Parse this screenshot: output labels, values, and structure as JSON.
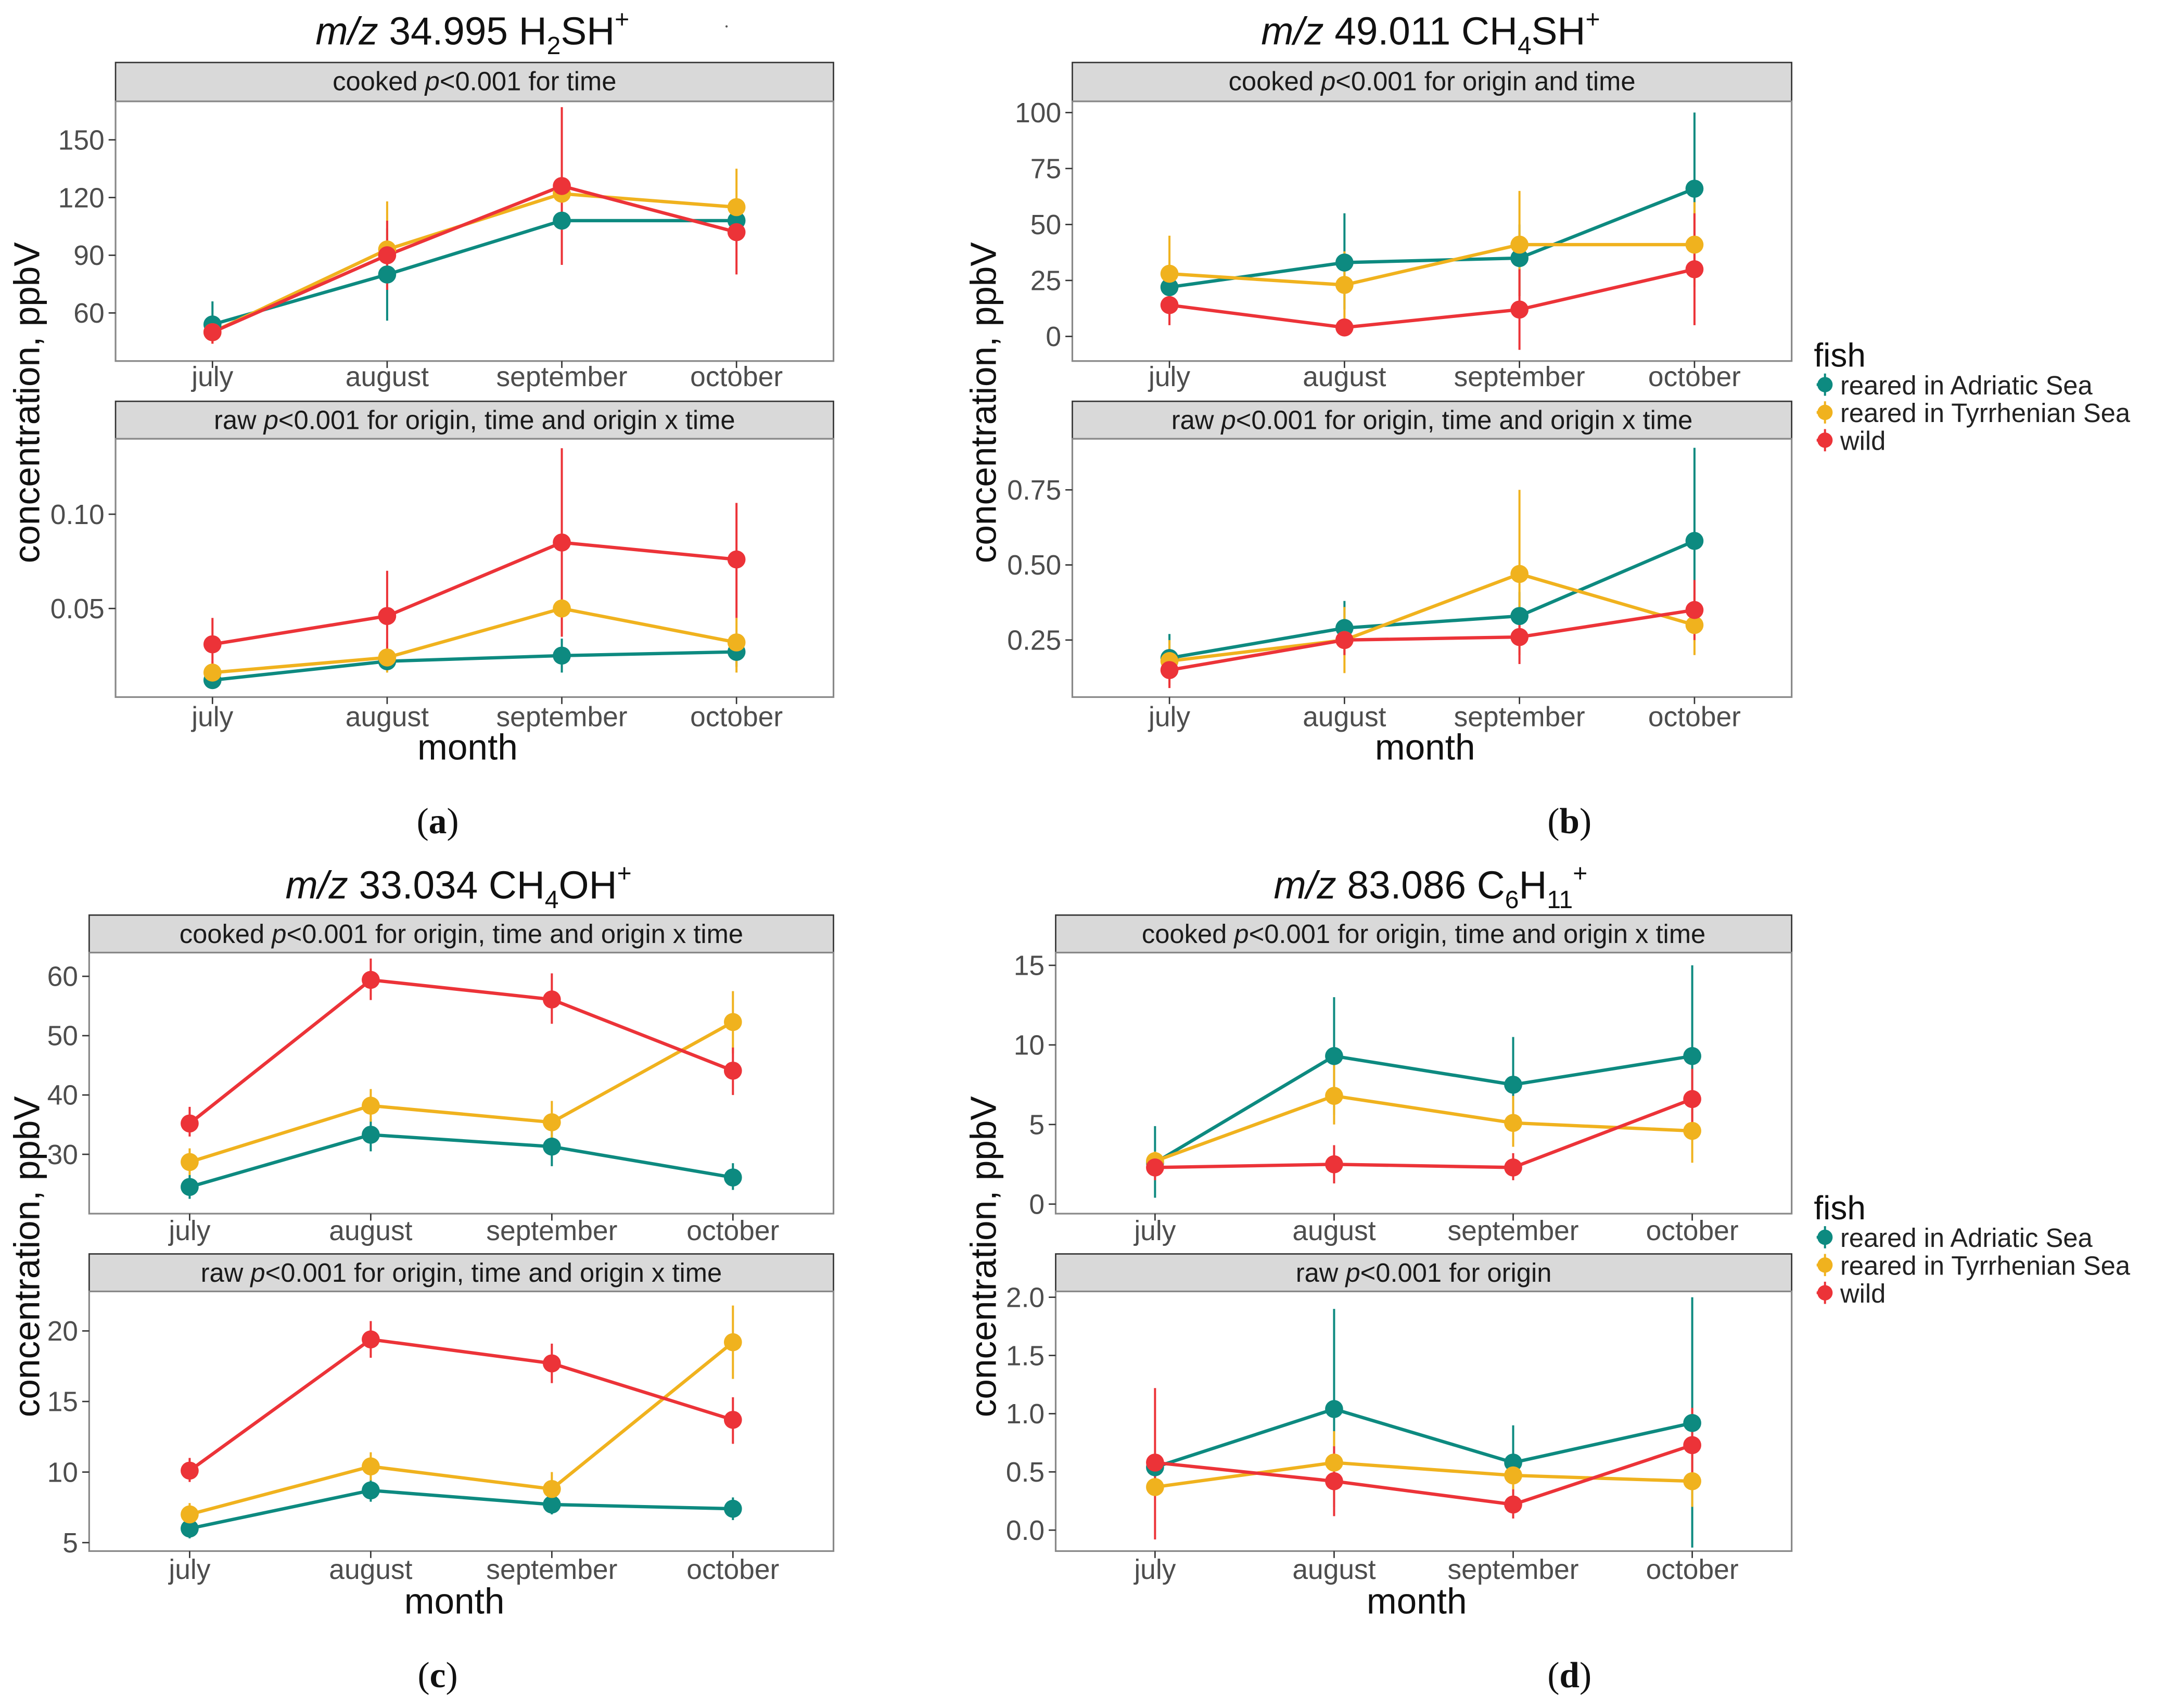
{
  "figure": {
    "xlabel": "month",
    "ylabel": "concentration, ppbV",
    "legend": {
      "title": "fish",
      "entries": [
        "reared in Adriatic Sea",
        "reared in Tyrrhenian Sea",
        "wild"
      ]
    },
    "colors": {
      "reared in Adriatic Sea": "#0d8a80",
      "reared in Tyrrhenian Sea": "#f0b21e",
      "wild": "#ec3338",
      "strip": "#d9d9d9"
    }
  },
  "chart_data": [
    {
      "type": "line",
      "label": "(a)",
      "title": "m/z 34.995 H2SH+",
      "categories": [
        "july",
        "august",
        "september",
        "october"
      ],
      "panels": [
        {
          "strip": "cooked p<0.001 for time",
          "ylim": [
            35,
            170
          ],
          "yticks": [
            60,
            90,
            120,
            150
          ],
          "ytick_labels": [
            "60",
            "90",
            "120",
            "150"
          ],
          "series": [
            {
              "name": "reared in Adriatic Sea",
              "values": [
                54,
                80,
                108,
                108
              ],
              "err_low": [
                46,
                56,
                108,
                108
              ],
              "err_high": [
                66,
                104,
                108,
                108
              ]
            },
            {
              "name": "reared in Tyrrhenian Sea",
              "values": [
                50,
                93,
                122,
                115
              ],
              "err_low": [
                44,
                76,
                108,
                98
              ],
              "err_high": [
                58,
                118,
                135,
                135
              ]
            },
            {
              "name": "wild",
              "values": [
                50,
                90,
                126,
                102
              ],
              "err_low": [
                44,
                72,
                85,
                80
              ],
              "err_high": [
                58,
                108,
                167,
                116
              ]
            }
          ]
        },
        {
          "strip": "raw p<0.001 for origin, time and origin x time",
          "ylim": [
            0.003,
            0.14
          ],
          "yticks": [
            0.05,
            0.1
          ],
          "ytick_labels": [
            "0.05",
            "0.10"
          ],
          "series": [
            {
              "name": "reared in Adriatic Sea",
              "values": [
                0.012,
                0.022,
                0.025,
                0.027
              ],
              "err_low": [
                0.008,
                0.018,
                0.016,
                0.019
              ],
              "err_high": [
                0.016,
                0.026,
                0.034,
                0.035
              ]
            },
            {
              "name": "reared in Tyrrhenian Sea",
              "values": [
                0.016,
                0.024,
                0.05,
                0.032
              ],
              "err_low": [
                0.01,
                0.016,
                0.035,
                0.016
              ],
              "err_high": [
                0.022,
                0.032,
                0.065,
                0.045
              ]
            },
            {
              "name": "wild",
              "values": [
                0.031,
                0.046,
                0.085,
                0.076
              ],
              "err_low": [
                0.018,
                0.022,
                0.035,
                0.045
              ],
              "err_high": [
                0.045,
                0.07,
                0.135,
                0.106
              ]
            }
          ]
        }
      ]
    },
    {
      "type": "line",
      "label": "(b)",
      "title": "m/z 49.011 CH4SH+",
      "categories": [
        "july",
        "august",
        "september",
        "october"
      ],
      "panels": [
        {
          "strip": "cooked p<0.001 for origin and time",
          "ylim": [
            -11,
            105
          ],
          "yticks": [
            0,
            25,
            50,
            75,
            100
          ],
          "ytick_labels": [
            "0",
            "25",
            "50",
            "75",
            "100"
          ],
          "series": [
            {
              "name": "reared in Adriatic Sea",
              "values": [
                22,
                33,
                35,
                66
              ],
              "err_low": [
                14,
                12,
                18,
                32
              ],
              "err_high": [
                30,
                55,
                50,
                100
              ]
            },
            {
              "name": "reared in Tyrrhenian Sea",
              "values": [
                28,
                23,
                41,
                41
              ],
              "err_low": [
                14,
                8,
                18,
                22
              ],
              "err_high": [
                45,
                38,
                65,
                60
              ]
            },
            {
              "name": "wild",
              "values": [
                14,
                4,
                12,
                30
              ],
              "err_low": [
                5,
                1,
                -6,
                5
              ],
              "err_high": [
                23,
                7,
                30,
                55
              ]
            }
          ]
        },
        {
          "strip": "raw p<0.001 for origin, time and origin x time",
          "ylim": [
            0.06,
            0.92
          ],
          "yticks": [
            0.25,
            0.5,
            0.75
          ],
          "ytick_labels": [
            "0.25",
            "0.50",
            "0.75"
          ],
          "series": [
            {
              "name": "reared in Adriatic Sea",
              "values": [
                0.19,
                0.29,
                0.33,
                0.58
              ],
              "err_low": [
                0.12,
                0.2,
                0.25,
                0.28
              ],
              "err_high": [
                0.27,
                0.38,
                0.41,
                0.89
              ]
            },
            {
              "name": "reared in Tyrrhenian Sea",
              "values": [
                0.18,
                0.25,
                0.47,
                0.3
              ],
              "err_low": [
                0.1,
                0.14,
                0.2,
                0.2
              ],
              "err_high": [
                0.25,
                0.36,
                0.75,
                0.4
              ]
            },
            {
              "name": "wild",
              "values": [
                0.15,
                0.25,
                0.26,
                0.35
              ],
              "err_low": [
                0.09,
                0.2,
                0.17,
                0.25
              ],
              "err_high": [
                0.22,
                0.3,
                0.35,
                0.45
              ]
            }
          ]
        }
      ]
    },
    {
      "type": "line",
      "label": "(c)",
      "title": "m/z 33.034 CH4OH+",
      "categories": [
        "july",
        "august",
        "september",
        "october"
      ],
      "panels": [
        {
          "strip": "cooked p<0.001 for origin, time and origin x time",
          "ylim": [
            20,
            64
          ],
          "yticks": [
            30,
            40,
            50,
            60
          ],
          "ytick_labels": [
            "30",
            "40",
            "50",
            "60"
          ],
          "series": [
            {
              "name": "reared in Adriatic Sea",
              "values": [
                24.5,
                33.3,
                31.3,
                26.1
              ],
              "err_low": [
                22.5,
                30.5,
                28,
                24
              ],
              "err_high": [
                26.5,
                36,
                34.5,
                28.5
              ]
            },
            {
              "name": "reared in Tyrrhenian Sea",
              "values": [
                28.7,
                38.2,
                35.4,
                52.3
              ],
              "err_low": [
                26.5,
                35.5,
                32,
                47
              ],
              "err_high": [
                31,
                41,
                39,
                57.5
              ]
            },
            {
              "name": "wild",
              "values": [
                35.2,
                59.4,
                56.1,
                44.1
              ],
              "err_low": [
                33,
                56,
                52,
                40
              ],
              "err_high": [
                38,
                63,
                60.5,
                48
              ]
            }
          ]
        },
        {
          "strip": "raw p<0.001 for origin, time and origin x time",
          "ylim": [
            4.4,
            22.8
          ],
          "yticks": [
            5,
            10,
            15,
            20
          ],
          "ytick_labels": [
            "5",
            "10",
            "15",
            "20"
          ],
          "series": [
            {
              "name": "reared in Adriatic Sea",
              "values": [
                6.0,
                8.7,
                7.7,
                7.4
              ],
              "err_low": [
                5.3,
                7.9,
                7.0,
                6.6
              ],
              "err_high": [
                6.7,
                9.5,
                8.4,
                8.2
              ]
            },
            {
              "name": "reared in Tyrrhenian Sea",
              "values": [
                7.0,
                10.4,
                8.8,
                19.2
              ],
              "err_low": [
                6.2,
                9.4,
                7.8,
                16.6
              ],
              "err_high": [
                7.8,
                11.4,
                10.0,
                21.8
              ]
            },
            {
              "name": "wild",
              "values": [
                10.1,
                19.4,
                17.7,
                13.7
              ],
              "err_low": [
                9.3,
                18.1,
                16.3,
                12.0
              ],
              "err_high": [
                11.0,
                20.7,
                19.1,
                15.3
              ]
            }
          ]
        }
      ]
    },
    {
      "type": "line",
      "label": "(d)",
      "title": "m/z 83.086 C6H11+",
      "categories": [
        "july",
        "august",
        "september",
        "october"
      ],
      "panels": [
        {
          "strip": "cooked p<0.001 for origin, time and origin x time",
          "ylim": [
            -0.6,
            15.8
          ],
          "yticks": [
            0,
            5,
            10,
            15
          ],
          "ytick_labels": [
            "0",
            "5",
            "10",
            "15"
          ],
          "series": [
            {
              "name": "reared in Adriatic Sea",
              "values": [
                2.6,
                9.3,
                7.5,
                9.3
              ],
              "err_low": [
                0.4,
                5.6,
                5.0,
                4.0
              ],
              "err_high": [
                4.9,
                13.0,
                10.5,
                15.0
              ]
            },
            {
              "name": "reared in Tyrrhenian Sea",
              "values": [
                2.7,
                6.8,
                5.1,
                4.6
              ],
              "err_low": [
                2.0,
                5.0,
                3.6,
                2.6
              ],
              "err_high": [
                3.3,
                8.8,
                6.8,
                6.5
              ]
            },
            {
              "name": "wild",
              "values": [
                2.3,
                2.5,
                2.3,
                6.6
              ],
              "err_low": [
                1.5,
                1.3,
                1.5,
                4.6
              ],
              "err_high": [
                3.1,
                3.7,
                3.2,
                8.5
              ]
            }
          ]
        },
        {
          "strip": "raw p<0.001 for origin",
          "ylim": [
            -0.18,
            2.05
          ],
          "yticks": [
            0,
            0.5,
            1,
            1.5,
            2
          ],
          "ytick_labels": [
            "0.0",
            "0.5",
            "1.0",
            "1.5",
            "2.0"
          ],
          "series": [
            {
              "name": "reared in Adriatic Sea",
              "values": [
                0.54,
                1.04,
                0.58,
                0.92
              ],
              "err_low": [
                0.45,
                0.2,
                0.3,
                -0.15
              ],
              "err_high": [
                0.6,
                1.9,
                0.9,
                2.0
              ]
            },
            {
              "name": "reared in Tyrrhenian Sea",
              "values": [
                0.37,
                0.58,
                0.47,
                0.42
              ],
              "err_low": [
                0.3,
                0.3,
                0.3,
                0.2
              ],
              "err_high": [
                0.45,
                0.85,
                0.65,
                0.65
              ]
            },
            {
              "name": "wild",
              "values": [
                0.58,
                0.42,
                0.22,
                0.73
              ],
              "err_low": [
                -0.08,
                0.12,
                0.1,
                0.4
              ],
              "err_high": [
                1.22,
                0.72,
                0.35,
                1.05
              ]
            }
          ]
        }
      ]
    }
  ]
}
